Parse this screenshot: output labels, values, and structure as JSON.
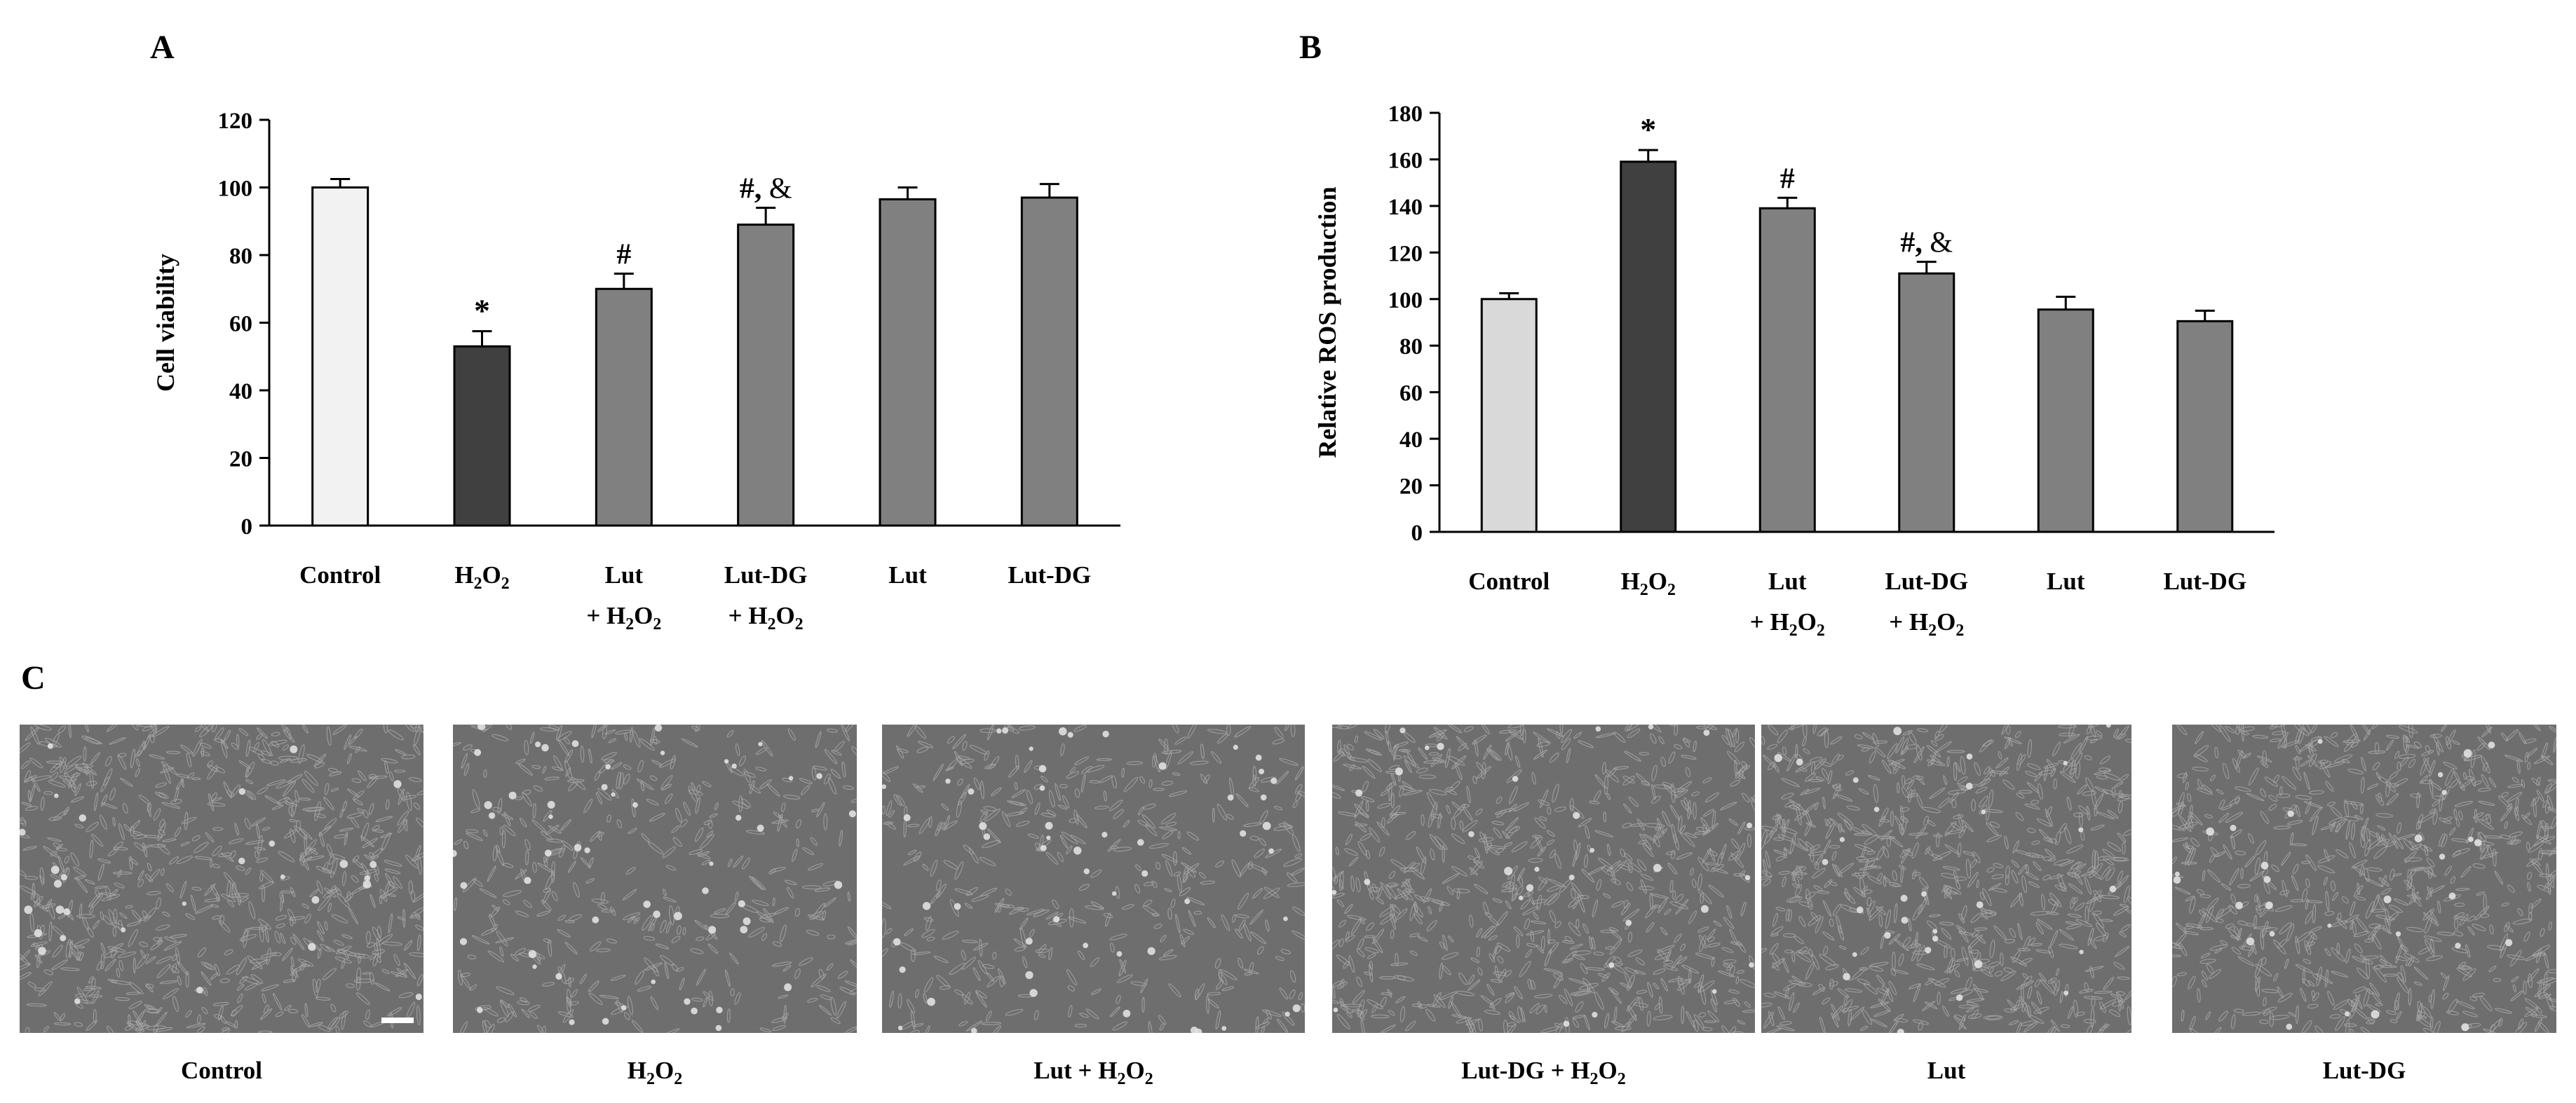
{
  "panel_letters": {
    "a": "A",
    "b": "B",
    "c": "C"
  },
  "chart_data": [
    {
      "type": "bar",
      "categories": [
        {
          "main": "Control",
          "sub": "",
          "tail": "",
          "line2": "",
          "line2_sub": ""
        },
        {
          "main": "H",
          "sub": "2",
          "tail": "O",
          "tail_sub": "2",
          "line2": "",
          "line2_sub": ""
        },
        {
          "main": "Lut",
          "sub": "",
          "tail": "",
          "line2": "+ H",
          "line2_sub": "2",
          "line2_tail": "O",
          "line2_tail_sub": "2"
        },
        {
          "main": "Lut-DG",
          "sub": "",
          "tail": "",
          "line2": "+ H",
          "line2_sub": "2",
          "line2_tail": "O",
          "line2_tail_sub": "2"
        },
        {
          "main": "Lut",
          "sub": "",
          "tail": "",
          "line2": "",
          "line2_sub": ""
        },
        {
          "main": "Lut-DG",
          "sub": "",
          "tail": "",
          "line2": "",
          "line2_sub": ""
        }
      ],
      "values": [
        100,
        53,
        70,
        89,
        96.5,
        97
      ],
      "errors": [
        2.5,
        4.5,
        4.5,
        5,
        3.5,
        4
      ],
      "annotations": [
        "",
        "*",
        "#",
        "#, &",
        "",
        ""
      ],
      "bar_colors": [
        "#f2f2f2",
        "#404040",
        "#808080",
        "#808080",
        "#808080",
        "#808080"
      ],
      "ylabel": "Cell viability",
      "ylim": [
        0,
        120
      ],
      "yticks": [
        0,
        20,
        40,
        60,
        80,
        100,
        120
      ],
      "grid": false
    },
    {
      "type": "bar",
      "categories": [
        {
          "main": "Control",
          "sub": "",
          "tail": "",
          "line2": "",
          "line2_sub": ""
        },
        {
          "main": "H",
          "sub": "2",
          "tail": "O",
          "tail_sub": "2",
          "line2": "",
          "line2_sub": ""
        },
        {
          "main": "Lut",
          "sub": "",
          "tail": "",
          "line2": "+ H",
          "line2_sub": "2",
          "line2_tail": "O",
          "line2_tail_sub": "2"
        },
        {
          "main": "Lut-DG",
          "sub": "",
          "tail": "",
          "line2": "+ H",
          "line2_sub": "2",
          "line2_tail": "O",
          "line2_tail_sub": "2"
        },
        {
          "main": "Lut",
          "sub": "",
          "tail": "",
          "line2": "",
          "line2_sub": ""
        },
        {
          "main": "Lut-DG",
          "sub": "",
          "tail": "",
          "line2": "",
          "line2_sub": ""
        }
      ],
      "values": [
        100,
        159,
        139,
        111,
        95.5,
        90.5
      ],
      "errors": [
        2.5,
        5,
        4.5,
        5,
        5.5,
        4.5
      ],
      "annotations": [
        "",
        "*",
        "#",
        "#, &",
        "",
        ""
      ],
      "bar_colors": [
        "#d9d9d9",
        "#404040",
        "#808080",
        "#808080",
        "#808080",
        "#808080"
      ],
      "ylabel": "Relative ROS production",
      "ylim": [
        0,
        180
      ],
      "yticks": [
        0,
        20,
        40,
        60,
        80,
        100,
        120,
        140,
        160,
        180
      ],
      "grid": false
    }
  ],
  "micrographs": [
    {
      "main": "Control",
      "sub": "",
      "tail": "",
      "tail_sub": "",
      "has_scale_bar": true
    },
    {
      "main": "H",
      "sub": "2",
      "tail": "O",
      "tail_sub": "2",
      "has_scale_bar": false
    },
    {
      "main": "Lut + H",
      "sub": "2",
      "tail": "O",
      "tail_sub": "2",
      "has_scale_bar": false
    },
    {
      "main": "Lut-DG + H",
      "sub": "2",
      "tail": "O",
      "tail_sub": "2",
      "has_scale_bar": false
    },
    {
      "main": "Lut",
      "sub": "",
      "tail": "",
      "tail_sub": "",
      "has_scale_bar": false
    },
    {
      "main": "Lut-DG",
      "sub": "",
      "tail": "",
      "tail_sub": "",
      "has_scale_bar": false
    }
  ],
  "colors": {
    "micrograph_bg": "#6e6e6e",
    "cell_light": "#a8a8a8",
    "cell_bright": "#e8e8e8"
  }
}
